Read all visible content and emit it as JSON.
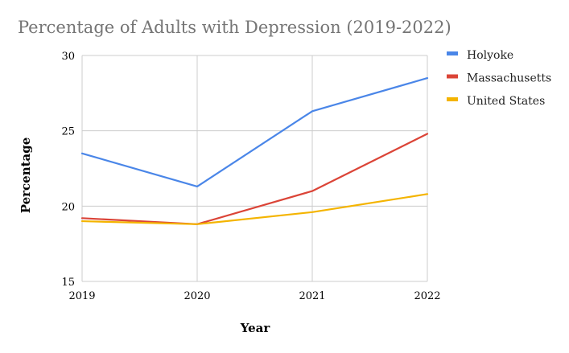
{
  "chart_data": {
    "type": "line",
    "title": "Percentage of Adults with Depression (2019-2022)",
    "xlabel": "Year",
    "ylabel": "Percentage",
    "categories": [
      "2019",
      "2020",
      "2021",
      "2022"
    ],
    "ylim": [
      15,
      30
    ],
    "yticks": [
      15,
      20,
      25,
      30
    ],
    "grid": true,
    "legend_position": "right",
    "series": [
      {
        "name": "Holyoke",
        "color": "#4A86E8",
        "values": [
          23.5,
          21.3,
          26.3,
          28.5
        ]
      },
      {
        "name": "Massachusetts",
        "color": "#DB4437",
        "values": [
          19.2,
          18.8,
          21.0,
          24.8
        ]
      },
      {
        "name": "United States",
        "color": "#F4B400",
        "values": [
          19.0,
          18.8,
          19.6,
          20.8
        ]
      }
    ]
  }
}
